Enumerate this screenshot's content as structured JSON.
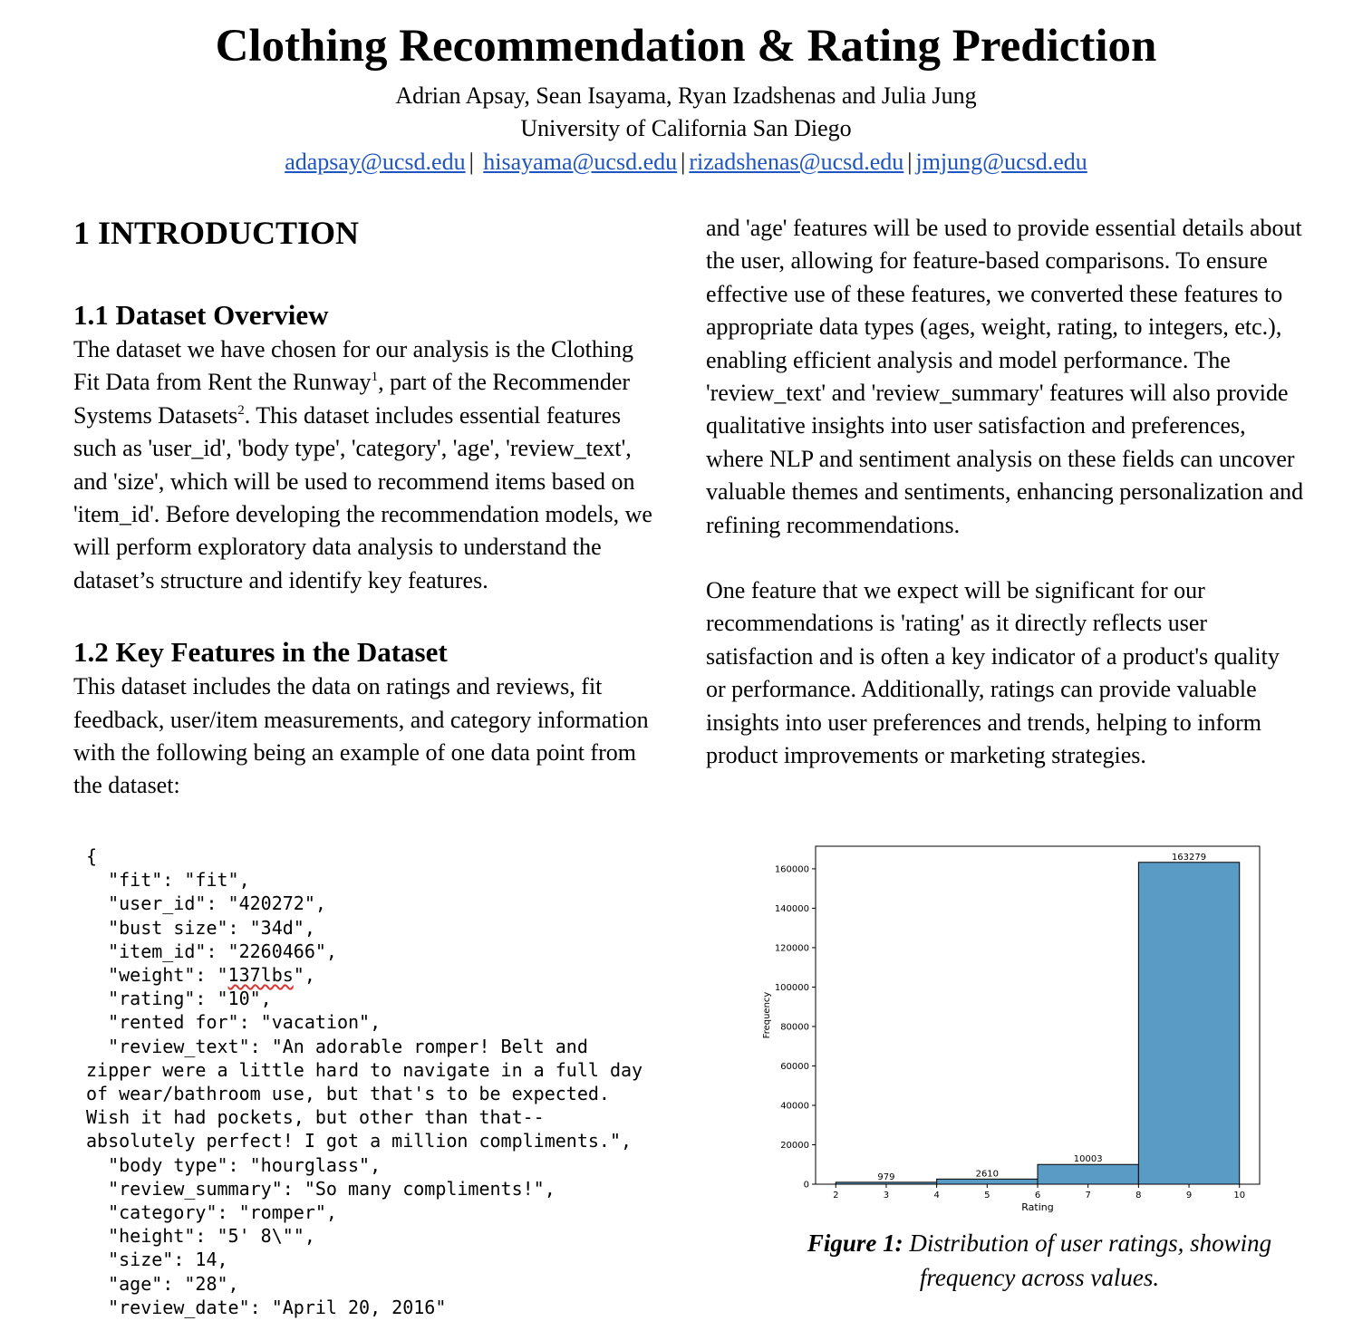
{
  "title": "Clothing Recommendation & Rating Prediction",
  "authors": "Adrian Apsay, Sean Isayama, Ryan Izadshenas and Julia Jung",
  "affiliation": "University of California San Diego",
  "emails": [
    "adapsay@ucsd.edu",
    "hisayama@ucsd.edu",
    "rizadshenas@ucsd.edu",
    "jmjung@ucsd.edu"
  ],
  "email_separator": "|",
  "sections": {
    "intro_heading": "1 INTRODUCTION",
    "overview_heading": "1.1 Dataset Overview",
    "overview_p_part1": "The dataset we have chosen for our analysis is the Clothing Fit Data from Rent the Runway",
    "footnote_1": "1",
    "overview_p_part2": ", part of the Recommender Systems Datasets",
    "footnote_2": "2",
    "overview_p_part3": ". This dataset includes essential features such as 'user_id', 'body type', 'category', 'age', 'review_text', and 'size', which will be used to recommend items based on 'item_id'. Before developing the recommendation models, we will perform exploratory data analysis to understand the dataset’s structure and identify key features.",
    "keyfeatures_heading": "1.2 Key Features in the Dataset",
    "keyfeatures_p": "This dataset includes the data on ratings and reviews, fit feedback, user/item measurements, and category information with the following being an example of one data point from the dataset:",
    "right_p1": "and 'age' features will be used to provide essential details about the user, allowing for feature-based comparisons. To ensure effective use of these features, we converted these features to appropriate data types (ages, weight, rating, to integers, etc.), enabling efficient analysis and model performance. The 'review_text' and 'review_summary' features will also provide qualitative insights into user satisfaction and preferences, where NLP and sentiment analysis on these fields can uncover valuable themes and sentiments, enhancing personalization and refining recommendations.",
    "right_p2": "One feature that we expect will be significant for our recommendations is 'rating' as it directly reflects user satisfaction and is often a key indicator of a product's quality or performance. Additionally, ratings can provide valuable insights into user preferences and trends, helping to inform product improvements or marketing strategies."
  },
  "code_sample": {
    "line_open": "{",
    "fit": "  \"fit\": \"fit\",",
    "user_id": "  \"user_id\": \"420272\",",
    "bust_size": "  \"bust size\": \"34d\",",
    "item_id": "  \"item_id\": \"2260466\",",
    "weight_prefix": "  \"weight\": \"",
    "weight_value": "137lbs",
    "weight_suffix": "\",",
    "rating": "  \"rating\": \"10\",",
    "rented_for": "  \"rented for\": \"vacation\",",
    "review_text_1": "  \"review_text\": \"An adorable romper! Belt and",
    "review_text_2": "zipper were a little hard to navigate in a full day",
    "review_text_3": "of wear/bathroom use, but that's to be expected.",
    "review_text_4": "Wish it had pockets, but other than that--",
    "review_text_5": "absolutely perfect! I got a million compliments.\",",
    "body_type": "  \"body type\": \"hourglass\",",
    "review_summary": "  \"review_summary\": \"So many compliments!\",",
    "category": "  \"category\": \"romper\",",
    "height": "  \"height\": \"5' 8\\\"\",",
    "size": "  \"size\": 14,",
    "age": "  \"age\": \"28\",",
    "review_date": "  \"review_date\": \"April 20, 2016\""
  },
  "figure_caption_label": "Figure 1:",
  "figure_caption_text": " Distribution of user ratings, showing frequency across values.",
  "chart_data": {
    "type": "bar",
    "bins": [
      [
        2,
        4
      ],
      [
        4,
        6
      ],
      [
        6,
        8
      ],
      [
        8,
        10
      ]
    ],
    "values": [
      979,
      2610,
      10003,
      163279
    ],
    "data_labels": [
      "979",
      "2610",
      "10003",
      "163279"
    ],
    "xlabel": "Rating",
    "ylabel": "Frequency",
    "xticks": [
      2,
      3,
      4,
      5,
      6,
      7,
      8,
      9,
      10
    ],
    "yticks": [
      0,
      20000,
      40000,
      60000,
      80000,
      100000,
      120000,
      140000,
      160000
    ],
    "xlim": [
      1.6,
      10.4
    ],
    "ylim": [
      0,
      171443
    ],
    "bar_color": "#5a9bc6",
    "grid": false
  }
}
